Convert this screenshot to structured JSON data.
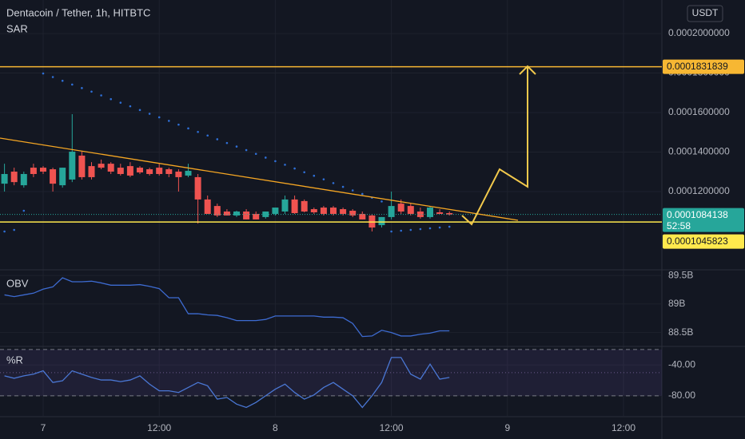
{
  "chart_data": [
    {
      "type": "candlestick",
      "title": "Dentacoin / Tether, 1h, HITBTC",
      "currency": "USDT",
      "x_labels": [
        "7",
        "12:00",
        "8",
        "12:00",
        "9",
        "12:00"
      ],
      "up_color": "#26a69a",
      "down_color": "#ef5350",
      "open": [
        0.000124,
        0.0001301,
        0.0001232,
        0.0001321,
        0.0001321,
        0.0001313,
        0.0001232,
        0.0001261,
        0.0001382,
        0.0001329,
        0.0001341,
        0.0001341,
        0.0001321,
        0.0001329,
        0.0001321,
        0.0001313,
        0.0001321,
        0.0001313,
        0.0001301,
        0.0001281,
        0.0001273,
        0.000116,
        0.0001127,
        0.0001099,
        0.0001079,
        0.0001099,
        0.0001087,
        0.0001071,
        0.0001087,
        0.0001099,
        0.000116,
        0.0001152,
        0.0001111,
        0.0001119,
        0.0001119,
        0.0001111,
        0.0001103,
        0.0001087,
        0.0001079,
        0.000103,
        0.0001071,
        0.0001139,
        0.0001127,
        0.0001099,
        0.0001071,
        0.0001095,
        0.0001091
      ],
      "high": [
        0.0001341,
        0.0001321,
        0.0001301,
        0.0001341,
        0.0001329,
        0.0001321,
        0.0001321,
        0.0001592,
        0.0001402,
        0.0001349,
        0.0001362,
        0.0001349,
        0.0001341,
        0.0001349,
        0.0001329,
        0.0001321,
        0.0001341,
        0.0001321,
        0.0001313,
        0.0001341,
        0.0001289,
        0.000118,
        0.0001139,
        0.0001111,
        0.0001103,
        0.0001111,
        0.0001099,
        0.0001099,
        0.0001119,
        0.000118,
        0.000118,
        0.000116,
        0.0001119,
        0.0001127,
        0.0001127,
        0.0001119,
        0.0001111,
        0.0001099,
        0.0001087,
        0.0001071,
        0.00012,
        0.000116,
        0.0001139,
        0.0001119,
        0.0001127,
        0.0001111,
        0.0001099
      ],
      "low": [
        0.00012,
        0.0001232,
        0.000122,
        0.0001273,
        0.0001289,
        0.00012,
        0.000122,
        0.0001248,
        0.0001261,
        0.0001261,
        0.0001313,
        0.0001289,
        0.0001281,
        0.0001273,
        0.0001289,
        0.0001281,
        0.0001281,
        0.0001273,
        0.00012,
        0.0001273,
        0.0001038,
        0.0001087,
        0.0001071,
        0.0001079,
        0.0001071,
        0.0001059,
        0.0001059,
        0.0001063,
        0.0001079,
        0.0001087,
        0.0001087,
        0.0001095,
        0.0001087,
        0.0001079,
        0.0001079,
        0.0001079,
        0.0001071,
        0.0001059,
        9.98e-05,
        0.0001018,
        0.0001059,
        0.0001087,
        0.0001079,
        0.0001063,
        0.0001063,
        0.0001087,
        0.0001079
      ],
      "close": [
        0.0001289,
        0.0001248,
        0.0001289,
        0.0001289,
        0.0001301,
        0.000124,
        0.0001321,
        0.0001402,
        0.0001273,
        0.0001273,
        0.0001321,
        0.0001301,
        0.0001289,
        0.0001281,
        0.0001297,
        0.0001289,
        0.0001289,
        0.0001289,
        0.0001273,
        0.0001305,
        0.000116,
        0.0001087,
        0.0001079,
        0.0001079,
        0.0001099,
        0.0001059,
        0.0001059,
        0.0001099,
        0.0001119,
        0.000116,
        0.0001091,
        0.0001099,
        0.0001095,
        0.0001087,
        0.0001087,
        0.0001087,
        0.0001079,
        0.0001059,
        0.0001018,
        0.0001071,
        0.0001127,
        0.0001099,
        0.0001087,
        0.0001071,
        0.0001119,
        0.0001087,
        0.0001084138
      ],
      "series": [
        {
          "name": "SAR",
          "color": "#2f6fd6",
          "values": [
            9.98e-05,
            0.0001006,
            0.0001103,
            null,
            0.0001798,
            0.000178,
            0.0001761,
            0.0001742,
            0.0001724,
            0.0001706,
            0.0001687,
            0.0001668,
            0.000165,
            0.0001632,
            0.0001613,
            0.0001594,
            0.0001576,
            0.0001558,
            0.0001539,
            0.000152,
            0.0001502,
            0.0001484,
            0.0001465,
            0.0001446,
            0.0001428,
            0.000141,
            0.0001391,
            0.0001372,
            0.0001354,
            0.0001336,
            0.0001317,
            0.0001298,
            0.000128,
            0.0001262,
            0.0001243,
            0.0001224,
            0.0001206,
            0.0001188,
            0.0001169,
            0.000115,
            9.98e-05,
            0.0001002,
            0.0001006,
            0.000101,
            0.0001014,
            0.0001018,
            0.0001022
          ]
        }
      ],
      "levels": [
        {
          "value": 0.0001831839,
          "color": "#f7b733"
        },
        {
          "value": 0.0001045823,
          "color": "#ffe94d"
        }
      ],
      "countdown": "52:58",
      "ylim": [
        8.04e-05,
        0.000217
      ],
      "yticks": [
        {
          "value": 0.0002,
          "label": "0.0002000000"
        },
        {
          "value": 0.00018,
          "label": "0.0001800000"
        },
        {
          "value": 0.00016,
          "label": "0.0001600000"
        },
        {
          "value": 0.00014,
          "label": "0.0001400000"
        },
        {
          "value": 0.00012,
          "label": "0.0001200000"
        }
      ],
      "grid": true
    },
    {
      "type": "line",
      "series": [
        {
          "name": "OBV",
          "color": "#3d6bd1",
          "values": [
            89160000000,
            89130000000,
            89160000000,
            89190000000,
            89260000000,
            89300000000,
            89460000000,
            89390000000,
            89390000000,
            89400000000,
            89370000000,
            89330000000,
            89330000000,
            89330000000,
            89340000000,
            89310000000,
            89270000000,
            89110000000,
            89110000000,
            88830000000,
            88830000000,
            88810000000,
            88800000000,
            88760000000,
            88710000000,
            88710000000,
            88710000000,
            88730000000,
            88790000000,
            88790000000,
            88790000000,
            88790000000,
            88790000000,
            88770000000,
            88770000000,
            88760000000,
            88660000000,
            88430000000,
            88440000000,
            88540000000,
            88500000000,
            88440000000,
            88440000000,
            88470000000,
            88490000000,
            88530000000,
            88530000000
          ]
        }
      ],
      "ylim": [
        88271000000,
        89586000000
      ],
      "yticks": [
        {
          "value": 89500000000,
          "label": "89.5B"
        },
        {
          "value": 89000000000,
          "label": "89B"
        },
        {
          "value": 88500000000,
          "label": "88.5B"
        }
      ],
      "grid": true
    },
    {
      "type": "line",
      "series": [
        {
          "name": "%R",
          "color": "#4a77d4",
          "values": [
            -54.1,
            -57.3,
            -54.1,
            -51.9,
            -47.6,
            -62.7,
            -60.5,
            -47.6,
            -51.9,
            -56.2,
            -59.5,
            -59.5,
            -61.6,
            -59.5,
            -54.1,
            -64.9,
            -73.5,
            -73.5,
            -75.7,
            -69.2,
            -62.7,
            -67.0,
            -84.3,
            -82.2,
            -90.8,
            -95.1,
            -88.6,
            -80.0,
            -71.4,
            -64.9,
            -75.7,
            -84.3,
            -78.9,
            -69.2,
            -62.7,
            -71.4,
            -80.0,
            -95.1,
            -80.0,
            -62.7,
            -30.3,
            -30.3,
            -51.9,
            -58.4,
            -38.9,
            -58.4,
            -56.2
          ]
        }
      ],
      "band": [
        -80,
        -20
      ],
      "middle": -50,
      "band_color": "rgba(126,87,194,0.12)",
      "ylim": [
        -106,
        -17
      ],
      "yticks": [
        {
          "value": -40,
          "label": "-40.00"
        },
        {
          "value": -80,
          "label": "-80.00"
        }
      ],
      "grid": true
    }
  ]
}
